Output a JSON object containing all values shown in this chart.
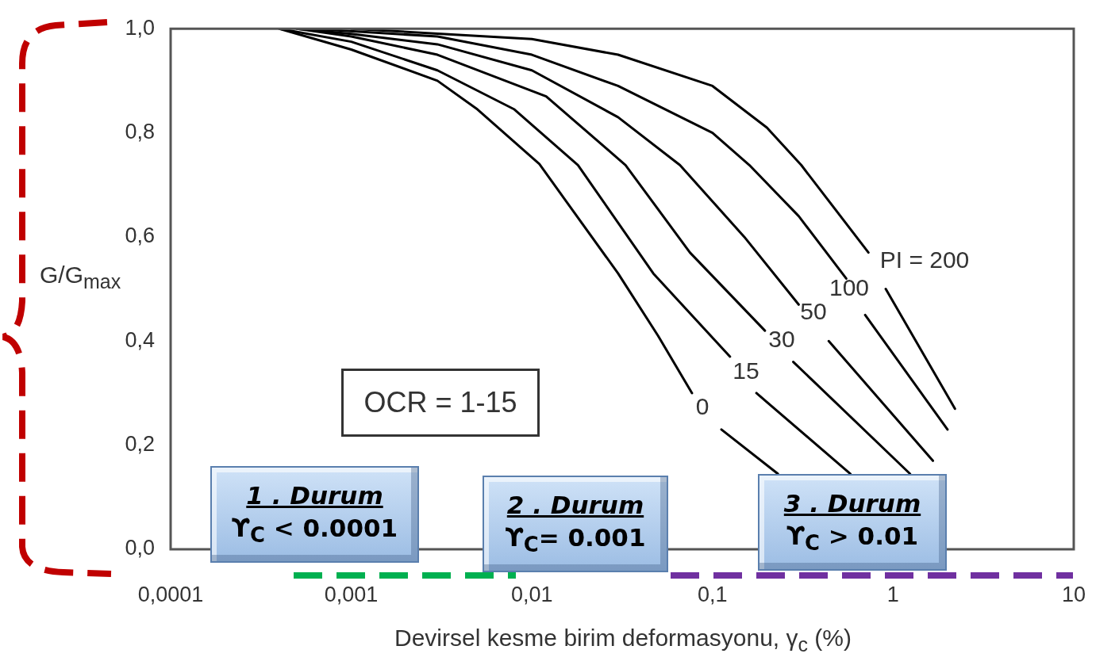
{
  "chart_data": {
    "type": "line",
    "xlabel": "Devirsel kesme birim deformasyonu, γ$_{c}$ (%)",
    "ylabel": "G/G$_{max}$",
    "log": "x",
    "marker": "none",
    "xlim": [
      0.0001,
      10
    ],
    "ylim": [
      0,
      1
    ],
    "xticks": [
      {
        "value": 0.0001,
        "label": "0,0001"
      },
      {
        "value": 0.001,
        "label": "0,001"
      },
      {
        "value": 0.01,
        "label": "0,01"
      },
      {
        "value": 0.1,
        "label": "0,1"
      },
      1,
      10
    ],
    "yticks": [
      {
        "value": 0,
        "label": "0,0"
      },
      {
        "value": 0.2,
        "label": "0,2"
      },
      {
        "value": 0.4,
        "label": "0,4"
      },
      {
        "value": 0.6,
        "label": "0,6"
      },
      {
        "value": 0.8,
        "label": "0,8"
      },
      {
        "value": 1,
        "label": "1,0"
      }
    ],
    "series": [
      {
        "color": "#000000",
        "x": [
          0.0004,
          0.001,
          0.003,
          0.005,
          0.011,
          0.03,
          0.05,
          0.077,
          0.09,
          0.112,
          0.23
        ],
        "values": [
          1,
          0.96,
          0.9,
          0.845,
          0.74,
          0.53,
          0.41,
          0.3,
          null,
          0.23,
          0.145
        ]
      },
      {
        "color": "#000000",
        "x": [
          0.0004,
          0.001,
          0.003,
          0.008,
          0.018,
          0.047,
          0.125,
          0.15,
          0.175,
          0.58
        ],
        "values": [
          1,
          0.975,
          0.92,
          0.845,
          0.738,
          0.53,
          0.37,
          null,
          0.3,
          0.145
        ]
      },
      {
        "color": "#000000",
        "x": [
          0.0005,
          0.001,
          0.003,
          0.012,
          0.033,
          0.075,
          0.195,
          0.23,
          0.28,
          1.24
        ],
        "values": [
          1,
          0.985,
          0.95,
          0.87,
          0.738,
          0.57,
          0.42,
          null,
          0.36,
          0.145
        ]
      },
      {
        "color": "#000000",
        "x": [
          0.0005,
          0.001,
          0.003,
          0.01,
          0.03,
          0.066,
          0.15,
          0.3,
          0.36,
          0.44,
          1.66
        ],
        "values": [
          1,
          0.99,
          0.97,
          0.92,
          0.83,
          0.738,
          0.6,
          0.47,
          null,
          0.4,
          0.17
        ]
      },
      {
        "color": "#000000",
        "x": [
          0.0006,
          0.003,
          0.01,
          0.03,
          0.1,
          0.16,
          0.3,
          0.55,
          0.62,
          0.7,
          2.0
        ],
        "values": [
          1,
          0.985,
          0.95,
          0.89,
          0.8,
          0.738,
          0.64,
          0.52,
          null,
          0.45,
          0.23
        ]
      },
      {
        "color": "#000000",
        "x": [
          0.001,
          0.01,
          0.03,
          0.1,
          0.2,
          0.31,
          0.73,
          0.82,
          0.91,
          2.2
        ],
        "values": [
          1,
          0.98,
          0.95,
          0.89,
          0.81,
          0.738,
          0.57,
          null,
          0.5,
          0.27
        ]
      }
    ],
    "annotations": [
      "OCR = 1-15",
      "1 . Durum",
      "ϒ$_{C}$ < 0.0001",
      "2 . Durum",
      "ϒ$_{C}$= 0.001",
      "3 . Durum",
      "ϒ$_{C}$ > 0.01",
      "0",
      "15",
      "30",
      "50",
      "100",
      "PI = 200"
    ]
  }
}
